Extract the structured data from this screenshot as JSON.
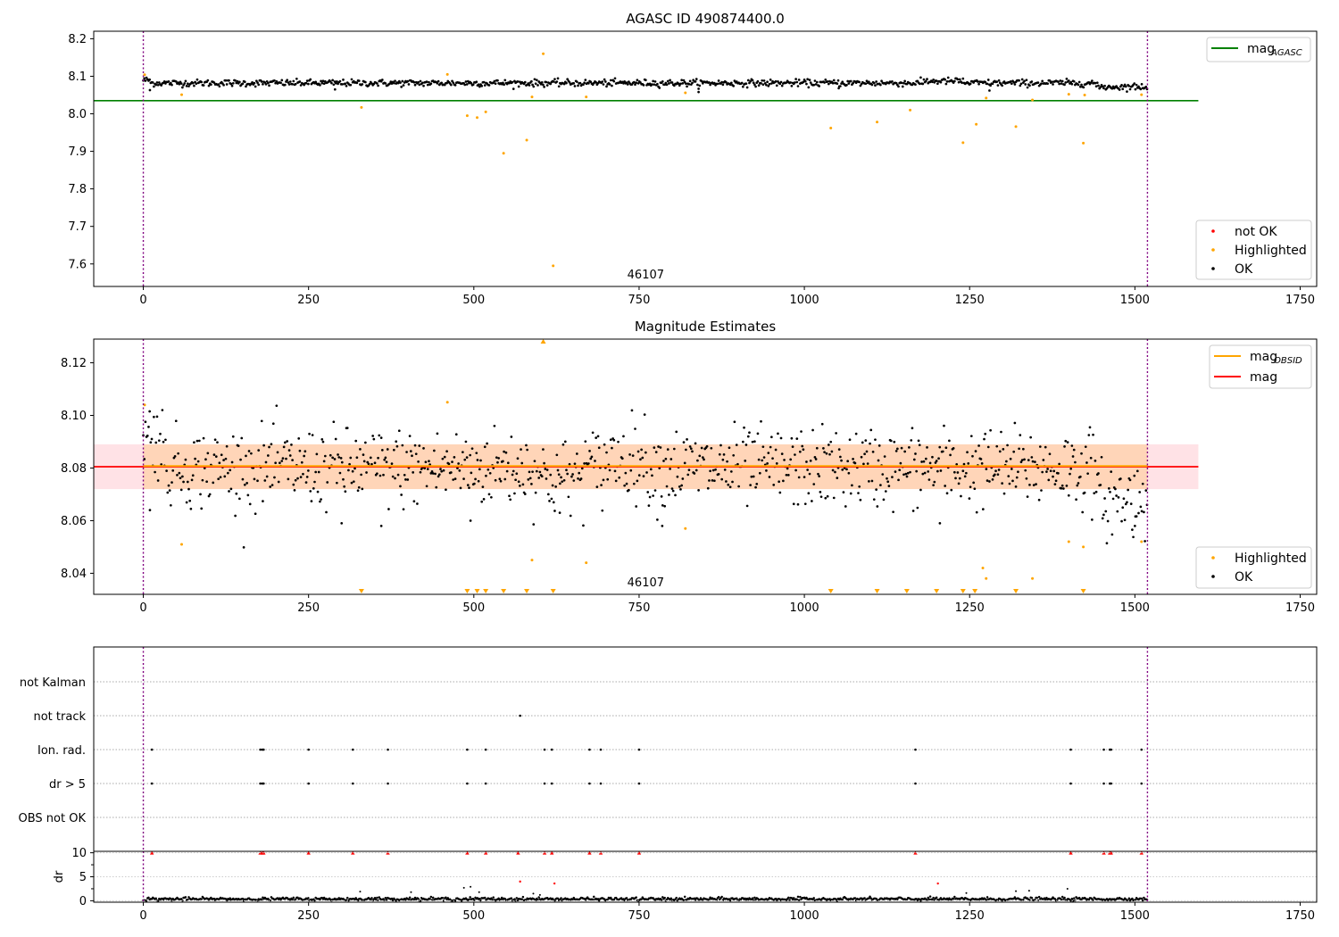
{
  "chart_data": [
    {
      "type": "scatter",
      "title": "AGASC ID 490874400.0",
      "xlim": [
        -75,
        1775
      ],
      "ylim": [
        7.54,
        8.22
      ],
      "xticks": [
        0,
        250,
        500,
        750,
        1000,
        1250,
        1500,
        1750
      ],
      "yticks": [
        7.6,
        7.7,
        7.8,
        7.9,
        8.0,
        8.1,
        8.2
      ],
      "obsid_label": "46107",
      "vlines": [
        0,
        1519
      ],
      "hline": {
        "name": "mag_AGASC",
        "label": "mag",
        "sub": "AGASC",
        "y": 8.035,
        "x": [
          -75,
          1596
        ],
        "color": "#008000"
      },
      "ok_band": {
        "center": 8.082,
        "halfwidth": 0.008
      },
      "highlighted": {
        "x": [
          2,
          58,
          330,
          460,
          490,
          505,
          518,
          545,
          580,
          588,
          605,
          620,
          670,
          820,
          1040,
          1110,
          1160,
          1240,
          1260,
          1275,
          1320,
          1345,
          1400,
          1422,
          1424,
          1510
        ],
        "y": [
          8.104,
          8.051,
          8.017,
          8.105,
          7.995,
          7.99,
          8.005,
          7.895,
          7.93,
          8.045,
          8.16,
          7.595,
          8.045,
          8.056,
          7.962,
          7.978,
          8.01,
          7.923,
          7.972,
          8.042,
          7.966,
          8.037,
          8.052,
          7.922,
          8.05,
          8.051
        ]
      },
      "not_ok": {
        "x": [],
        "y": []
      },
      "legend_series": [
        "not OK",
        "Highlighted",
        "OK"
      ],
      "legend_colors": [
        "#ff0000",
        "#ffa500",
        "#000000"
      ]
    },
    {
      "type": "scatter",
      "title": "Magnitude Estimates",
      "xlim": [
        -75,
        1775
      ],
      "ylim": [
        8.032,
        8.129
      ],
      "xticks": [
        0,
        250,
        500,
        750,
        1000,
        1250,
        1500,
        1750
      ],
      "yticks": [
        8.04,
        8.06,
        8.08,
        8.1,
        8.12
      ],
      "obsid_label": "46107",
      "vlines": [
        0,
        1519
      ],
      "mag_line": {
        "name": "mag",
        "y": 8.0805,
        "x": [
          -75,
          1596
        ],
        "color": "#ff0000",
        "band": [
          8.072,
          8.089
        ]
      },
      "mag_obsid_line": {
        "name": "mag_OBSID",
        "label": "mag",
        "sub": "OBSID",
        "y": 8.0805,
        "x": [
          0,
          1519
        ],
        "color": "#ffa500",
        "band": [
          8.072,
          8.089
        ]
      },
      "ok_band": {
        "center": 8.08,
        "halfwidth": 0.008
      },
      "highlighted": {
        "x": [
          2,
          58,
          460,
          588,
          605,
          670,
          820,
          1270,
          1275,
          1345,
          1400,
          1422,
          1510
        ],
        "y": [
          8.104,
          8.051,
          8.105,
          8.045,
          8.128,
          8.044,
          8.057,
          8.042,
          8.038,
          8.038,
          8.052,
          8.05,
          8.052
        ]
      },
      "out_of_range_low_x": [
        330,
        490,
        505,
        518,
        545,
        580,
        620,
        1040,
        1110,
        1155,
        1200,
        1240,
        1258,
        1320,
        1422
      ],
      "legend_series": [
        "Highlighted",
        "OK"
      ],
      "legend_colors": [
        "#ffa500",
        "#000000"
      ]
    },
    {
      "type": "scatter",
      "title": "",
      "xlim": [
        -75,
        1775
      ],
      "categories": [
        "not Kalman",
        "not track",
        "Ion. rad.",
        "dr > 5",
        "OBS not OK"
      ],
      "vlines": [
        0,
        1519
      ],
      "flags": {
        "not_track": [
          570
        ],
        "ion_rad": [
          13,
          177,
          180,
          182,
          250,
          317,
          370,
          490,
          518,
          607,
          618,
          675,
          692,
          750,
          1168,
          1403,
          1453,
          1462,
          1464,
          1510
        ],
        "dr_gt_5": [
          13,
          177,
          180,
          182,
          250,
          317,
          370,
          490,
          518,
          607,
          618,
          675,
          692,
          750,
          1168,
          1403,
          1453,
          1462,
          1464,
          1510
        ]
      }
    },
    {
      "type": "scatter",
      "title": "",
      "ylabel": "dr",
      "xlim": [
        -75,
        1775
      ],
      "ylim": [
        -0.3,
        10.3
      ],
      "xticks": [
        0,
        250,
        500,
        750,
        1000,
        1250,
        1500,
        1750
      ],
      "yticks": [
        0,
        5,
        10
      ],
      "vlines": [
        0,
        1519
      ],
      "clipped_x": [
        13,
        177,
        180,
        182,
        250,
        317,
        370,
        490,
        518,
        567,
        607,
        618,
        675,
        692,
        750,
        1168,
        1403,
        1453,
        1462,
        1464,
        1510
      ],
      "red_points": {
        "x": [
          570,
          622,
          1202
        ],
        "y": [
          4.0,
          3.6,
          3.6
        ]
      },
      "scattered_points": {
        "x": [
          328,
          405,
          485,
          495,
          508,
          590,
          600,
          1245,
          1320,
          1340,
          1398
        ],
        "y": [
          1.9,
          1.8,
          2.7,
          2.9,
          1.8,
          1.5,
          1.2,
          1.6,
          2.0,
          2.1,
          2.5
        ]
      }
    }
  ]
}
